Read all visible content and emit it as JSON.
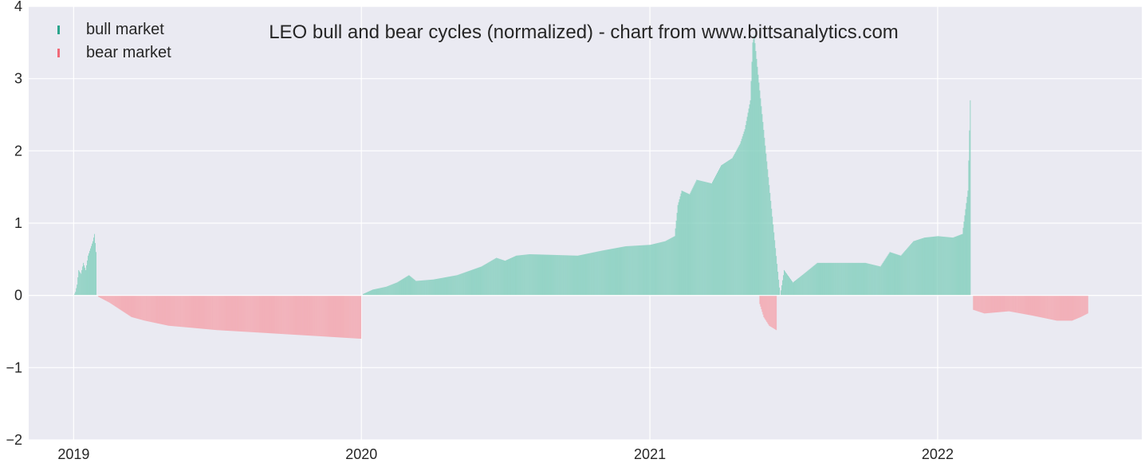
{
  "colors": {
    "background": "#eaeaf2",
    "grid": "#ffffff",
    "bull": "#7ecdbb",
    "bear": "#f4a0a8",
    "bull_legend": "#2ca58d",
    "bear_legend": "#f06a78",
    "text": "#262626"
  },
  "chart_data": {
    "type": "bar",
    "title": "LEO bull and bear cycles (normalized)  - chart from www.bittsanalytics.com",
    "xlabel": "",
    "ylabel": "",
    "ylim": [
      -2,
      4
    ],
    "xlim": [
      "2018-11-05",
      "2022-09-17"
    ],
    "grid": true,
    "legend_position": "top-left",
    "x_ticks": [
      "2019",
      "2020",
      "2021",
      "2022"
    ],
    "x_tick_dates": [
      "2019-01-01",
      "2020-01-01",
      "2021-01-01",
      "2022-01-01"
    ],
    "y_ticks": [
      4,
      3,
      2,
      1,
      0,
      -1,
      -2
    ],
    "y_tick_labels": [
      "4",
      "3",
      "2",
      "1",
      "0",
      "−1",
      "−2"
    ],
    "series": [
      {
        "name": "bull market",
        "color": "#7ecdbb",
        "points": [
          [
            "2019-01-01",
            0.0
          ],
          [
            "2019-01-03",
            0.05
          ],
          [
            "2019-01-05",
            0.15
          ],
          [
            "2019-01-07",
            0.35
          ],
          [
            "2019-01-10",
            0.3
          ],
          [
            "2019-01-13",
            0.45
          ],
          [
            "2019-01-16",
            0.35
          ],
          [
            "2019-01-19",
            0.55
          ],
          [
            "2019-01-22",
            0.65
          ],
          [
            "2019-01-25",
            0.75
          ],
          [
            "2019-01-27",
            0.85
          ],
          [
            "2019-01-29",
            0.6
          ],
          [
            "2020-01-03",
            0.02
          ],
          [
            "2020-01-15",
            0.08
          ],
          [
            "2020-02-01",
            0.12
          ],
          [
            "2020-02-15",
            0.18
          ],
          [
            "2020-03-01",
            0.28
          ],
          [
            "2020-03-10",
            0.2
          ],
          [
            "2020-04-01",
            0.22
          ],
          [
            "2020-05-01",
            0.28
          ],
          [
            "2020-06-01",
            0.4
          ],
          [
            "2020-06-20",
            0.52
          ],
          [
            "2020-07-01",
            0.48
          ],
          [
            "2020-07-15",
            0.55
          ],
          [
            "2020-08-01",
            0.57
          ],
          [
            "2020-09-01",
            0.56
          ],
          [
            "2020-10-01",
            0.55
          ],
          [
            "2020-11-01",
            0.62
          ],
          [
            "2020-12-01",
            0.68
          ],
          [
            "2021-01-01",
            0.7
          ],
          [
            "2021-01-20",
            0.75
          ],
          [
            "2021-02-01",
            0.82
          ],
          [
            "2021-02-05",
            1.25
          ],
          [
            "2021-02-10",
            1.45
          ],
          [
            "2021-02-20",
            1.4
          ],
          [
            "2021-03-01",
            1.6
          ],
          [
            "2021-03-20",
            1.55
          ],
          [
            "2021-04-01",
            1.8
          ],
          [
            "2021-04-15",
            1.9
          ],
          [
            "2021-04-25",
            2.1
          ],
          [
            "2021-05-01",
            2.3
          ],
          [
            "2021-05-08",
            2.7
          ],
          [
            "2021-05-11",
            3.5
          ],
          [
            "2021-05-13",
            3.6
          ],
          [
            "2021-06-15",
            0.0
          ],
          [
            "2021-06-20",
            0.35
          ],
          [
            "2021-07-01",
            0.18
          ],
          [
            "2021-07-15",
            0.3
          ],
          [
            "2021-08-01",
            0.45
          ],
          [
            "2021-09-01",
            0.45
          ],
          [
            "2021-10-01",
            0.45
          ],
          [
            "2021-10-20",
            0.4
          ],
          [
            "2021-11-01",
            0.6
          ],
          [
            "2021-11-15",
            0.55
          ],
          [
            "2021-12-01",
            0.75
          ],
          [
            "2021-12-15",
            0.8
          ],
          [
            "2022-01-01",
            0.82
          ],
          [
            "2022-01-20",
            0.8
          ],
          [
            "2022-02-01",
            0.85
          ],
          [
            "2022-02-08",
            1.45
          ],
          [
            "2022-02-11",
            2.7
          ]
        ]
      },
      {
        "name": "bear market",
        "color": "#f4a0a8",
        "points": [
          [
            "2019-02-01",
            -0.02
          ],
          [
            "2019-02-15",
            -0.1
          ],
          [
            "2019-03-01",
            -0.2
          ],
          [
            "2019-03-15",
            -0.3
          ],
          [
            "2019-04-01",
            -0.35
          ],
          [
            "2019-05-01",
            -0.42
          ],
          [
            "2019-06-01",
            -0.45
          ],
          [
            "2019-07-01",
            -0.48
          ],
          [
            "2019-08-01",
            -0.5
          ],
          [
            "2019-09-01",
            -0.52
          ],
          [
            "2019-10-01",
            -0.54
          ],
          [
            "2019-11-01",
            -0.56
          ],
          [
            "2019-12-01",
            -0.58
          ],
          [
            "2019-12-31",
            -0.6
          ],
          [
            "2021-05-20",
            -0.12
          ],
          [
            "2021-05-25",
            -0.3
          ],
          [
            "2021-06-01",
            -0.42
          ],
          [
            "2021-06-10",
            -0.48
          ],
          [
            "2022-02-15",
            -0.2
          ],
          [
            "2022-03-01",
            -0.25
          ],
          [
            "2022-04-01",
            -0.22
          ],
          [
            "2022-05-01",
            -0.28
          ],
          [
            "2022-06-01",
            -0.35
          ],
          [
            "2022-06-20",
            -0.35
          ],
          [
            "2022-07-01",
            -0.3
          ],
          [
            "2022-07-10",
            -0.25
          ]
        ]
      }
    ]
  }
}
